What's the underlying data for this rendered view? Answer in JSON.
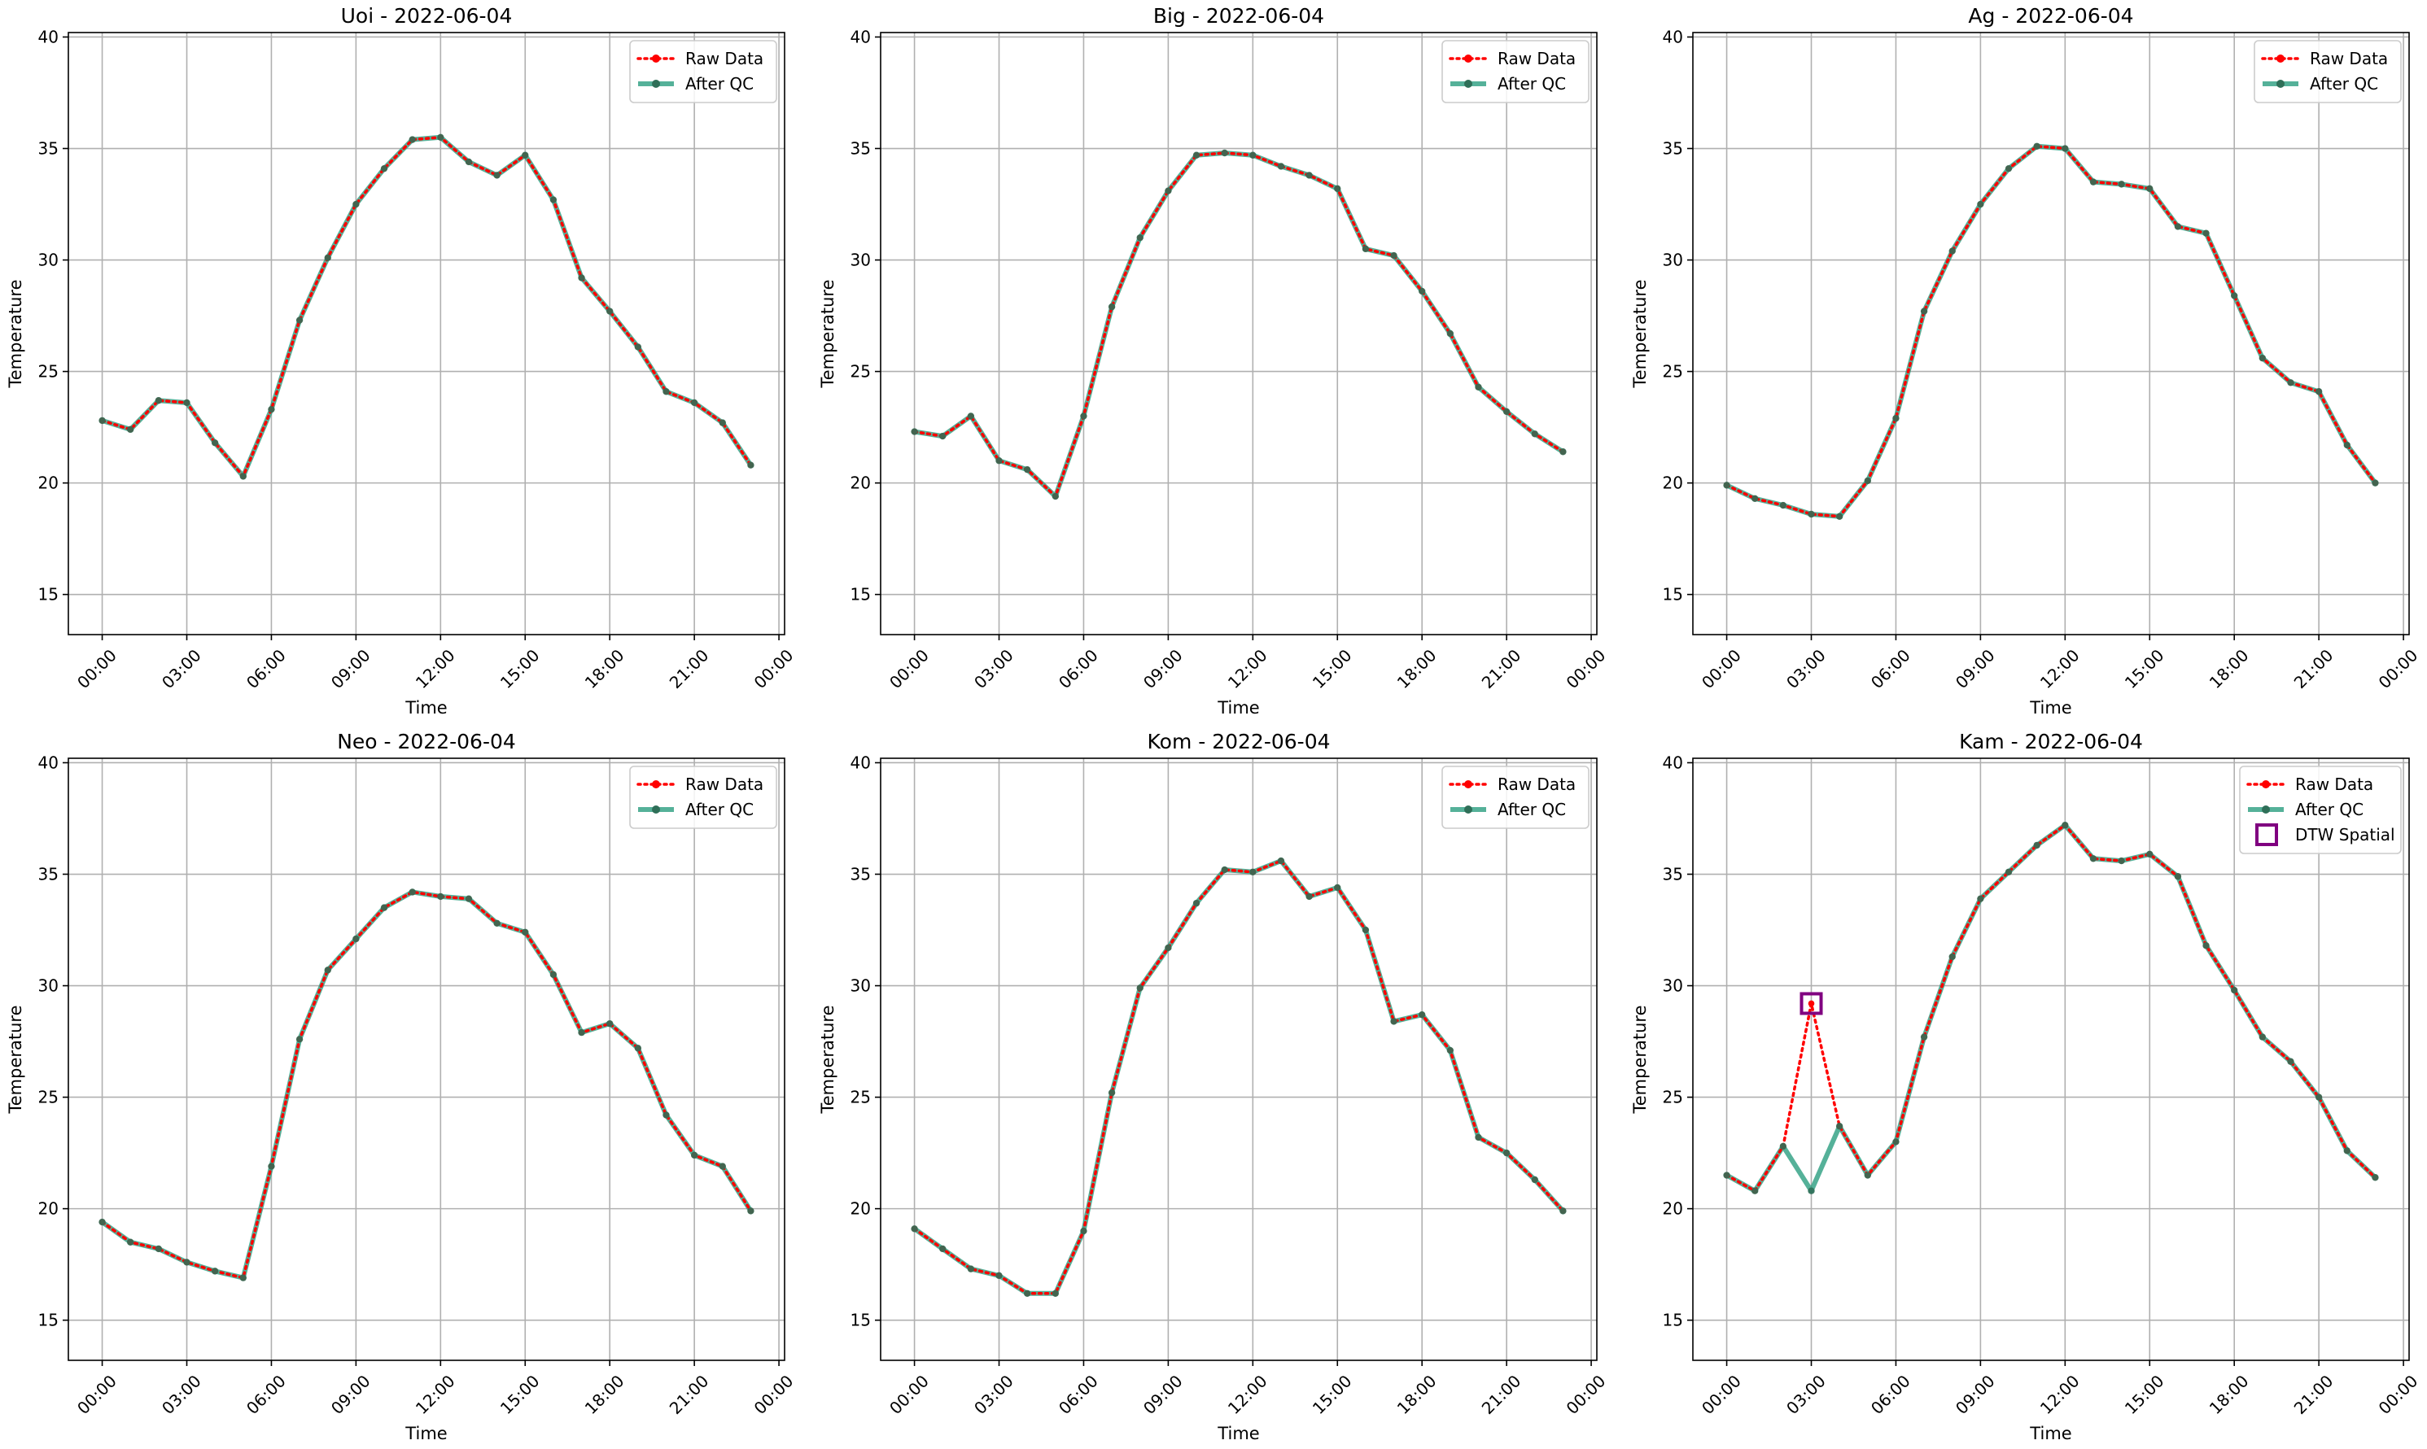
{
  "chart_data": [
    {
      "type": "line",
      "title": "Uoi - 2022-06-04",
      "xlabel": "Time",
      "ylabel": "Temperature",
      "x_ticks": [
        "00:00",
        "03:00",
        "06:00",
        "09:00",
        "12:00",
        "15:00",
        "18:00",
        "21:00",
        "00:00"
      ],
      "y_ticks": [
        15,
        20,
        25,
        30,
        35,
        40
      ],
      "ylim": [
        13.2,
        40.2
      ],
      "xlim_hours": [
        -1.2,
        24.2
      ],
      "grid": true,
      "legend_position": "top-right",
      "hours": [
        0,
        1,
        2,
        3,
        4,
        5,
        6,
        7,
        8,
        9,
        10,
        11,
        12,
        13,
        14,
        15,
        16,
        17,
        18,
        19,
        20,
        21,
        22,
        23
      ],
      "series": [
        {
          "name": "Raw Data",
          "color": "#ff0000",
          "style": "dotted",
          "values": [
            22.8,
            22.4,
            23.7,
            23.6,
            21.8,
            20.3,
            23.3,
            27.3,
            30.1,
            32.5,
            34.1,
            35.4,
            35.5,
            34.4,
            33.8,
            34.7,
            32.7,
            29.2,
            27.7,
            26.1,
            24.1,
            23.6,
            22.7,
            20.8
          ]
        },
        {
          "name": "After QC",
          "color": "#2a9d7f",
          "style": "solid",
          "values": [
            22.8,
            22.4,
            23.7,
            23.6,
            21.8,
            20.3,
            23.3,
            27.3,
            30.1,
            32.5,
            34.1,
            35.4,
            35.5,
            34.4,
            33.8,
            34.7,
            32.7,
            29.2,
            27.7,
            26.1,
            24.1,
            23.6,
            22.7,
            20.8
          ]
        }
      ],
      "flagged": []
    },
    {
      "type": "line",
      "title": "Big - 2022-06-04",
      "xlabel": "Time",
      "ylabel": "Temperature",
      "x_ticks": [
        "00:00",
        "03:00",
        "06:00",
        "09:00",
        "12:00",
        "15:00",
        "18:00",
        "21:00",
        "00:00"
      ],
      "y_ticks": [
        15,
        20,
        25,
        30,
        35,
        40
      ],
      "ylim": [
        13.2,
        40.2
      ],
      "xlim_hours": [
        -1.2,
        24.2
      ],
      "grid": true,
      "legend_position": "top-right",
      "hours": [
        0,
        1,
        2,
        3,
        4,
        5,
        6,
        7,
        8,
        9,
        10,
        11,
        12,
        13,
        14,
        15,
        16,
        17,
        18,
        19,
        20,
        21,
        22,
        23
      ],
      "series": [
        {
          "name": "Raw Data",
          "color": "#ff0000",
          "style": "dotted",
          "values": [
            22.3,
            22.1,
            23.0,
            21.0,
            20.6,
            19.4,
            23.0,
            27.9,
            31.0,
            33.1,
            34.7,
            34.8,
            34.7,
            34.2,
            33.8,
            33.2,
            30.5,
            30.2,
            28.6,
            26.7,
            24.3,
            23.2,
            22.2,
            21.4
          ]
        },
        {
          "name": "After QC",
          "color": "#2a9d7f",
          "style": "solid",
          "values": [
            22.3,
            22.1,
            23.0,
            21.0,
            20.6,
            19.4,
            23.0,
            27.9,
            31.0,
            33.1,
            34.7,
            34.8,
            34.7,
            34.2,
            33.8,
            33.2,
            30.5,
            30.2,
            28.6,
            26.7,
            24.3,
            23.2,
            22.2,
            21.4
          ]
        }
      ],
      "flagged": []
    },
    {
      "type": "line",
      "title": "Ag - 2022-06-04",
      "xlabel": "Time",
      "ylabel": "Temperature",
      "x_ticks": [
        "00:00",
        "03:00",
        "06:00",
        "09:00",
        "12:00",
        "15:00",
        "18:00",
        "21:00",
        "00:00"
      ],
      "y_ticks": [
        15,
        20,
        25,
        30,
        35,
        40
      ],
      "ylim": [
        13.2,
        40.2
      ],
      "xlim_hours": [
        -1.2,
        24.2
      ],
      "grid": true,
      "legend_position": "top-right",
      "hours": [
        0,
        1,
        2,
        3,
        4,
        5,
        6,
        7,
        8,
        9,
        10,
        11,
        12,
        13,
        14,
        15,
        16,
        17,
        18,
        19,
        20,
        21,
        22,
        23
      ],
      "series": [
        {
          "name": "Raw Data",
          "color": "#ff0000",
          "style": "dotted",
          "values": [
            19.9,
            19.3,
            19.0,
            18.6,
            18.5,
            20.1,
            22.9,
            27.7,
            30.4,
            32.5,
            34.1,
            35.1,
            35.0,
            33.5,
            33.4,
            33.2,
            31.5,
            31.2,
            28.4,
            25.6,
            24.5,
            24.1,
            21.7,
            20.0
          ]
        },
        {
          "name": "After QC",
          "color": "#2a9d7f",
          "style": "solid",
          "values": [
            19.9,
            19.3,
            19.0,
            18.6,
            18.5,
            20.1,
            22.9,
            27.7,
            30.4,
            32.5,
            34.1,
            35.1,
            35.0,
            33.5,
            33.4,
            33.2,
            31.5,
            31.2,
            28.4,
            25.6,
            24.5,
            24.1,
            21.7,
            20.0
          ]
        }
      ],
      "flagged": []
    },
    {
      "type": "line",
      "title": "Neo - 2022-06-04",
      "xlabel": "Time",
      "ylabel": "Temperature",
      "x_ticks": [
        "00:00",
        "03:00",
        "06:00",
        "09:00",
        "12:00",
        "15:00",
        "18:00",
        "21:00",
        "00:00"
      ],
      "y_ticks": [
        15,
        20,
        25,
        30,
        35,
        40
      ],
      "ylim": [
        13.2,
        40.2
      ],
      "xlim_hours": [
        -1.2,
        24.2
      ],
      "grid": true,
      "legend_position": "top-right",
      "hours": [
        0,
        1,
        2,
        3,
        4,
        5,
        6,
        7,
        8,
        9,
        10,
        11,
        12,
        13,
        14,
        15,
        16,
        17,
        18,
        19,
        20,
        21,
        22,
        23
      ],
      "series": [
        {
          "name": "Raw Data",
          "color": "#ff0000",
          "style": "dotted",
          "values": [
            19.4,
            18.5,
            18.2,
            17.6,
            17.2,
            16.9,
            21.9,
            27.6,
            30.7,
            32.1,
            33.5,
            34.2,
            34.0,
            33.9,
            32.8,
            32.4,
            30.5,
            27.9,
            28.3,
            27.2,
            24.2,
            22.4,
            21.9,
            19.9
          ]
        },
        {
          "name": "After QC",
          "color": "#2a9d7f",
          "style": "solid",
          "values": [
            19.4,
            18.5,
            18.2,
            17.6,
            17.2,
            16.9,
            21.9,
            27.6,
            30.7,
            32.1,
            33.5,
            34.2,
            34.0,
            33.9,
            32.8,
            32.4,
            30.5,
            27.9,
            28.3,
            27.2,
            24.2,
            22.4,
            21.9,
            19.9
          ]
        }
      ],
      "flagged": []
    },
    {
      "type": "line",
      "title": "Kom - 2022-06-04",
      "xlabel": "Time",
      "ylabel": "Temperature",
      "x_ticks": [
        "00:00",
        "03:00",
        "06:00",
        "09:00",
        "12:00",
        "15:00",
        "18:00",
        "21:00",
        "00:00"
      ],
      "y_ticks": [
        15,
        20,
        25,
        30,
        35,
        40
      ],
      "ylim": [
        13.2,
        40.2
      ],
      "xlim_hours": [
        -1.2,
        24.2
      ],
      "grid": true,
      "legend_position": "top-right",
      "hours": [
        0,
        1,
        2,
        3,
        4,
        5,
        6,
        7,
        8,
        9,
        10,
        11,
        12,
        13,
        14,
        15,
        16,
        17,
        18,
        19,
        20,
        21,
        22,
        23
      ],
      "series": [
        {
          "name": "Raw Data",
          "color": "#ff0000",
          "style": "dotted",
          "values": [
            19.1,
            18.2,
            17.3,
            17.0,
            16.2,
            16.2,
            19.0,
            25.2,
            29.9,
            31.7,
            33.7,
            35.2,
            35.1,
            35.6,
            34.0,
            34.4,
            32.5,
            28.4,
            28.7,
            27.1,
            23.2,
            22.5,
            21.3,
            19.9
          ]
        },
        {
          "name": "After QC",
          "color": "#2a9d7f",
          "style": "solid",
          "values": [
            19.1,
            18.2,
            17.3,
            17.0,
            16.2,
            16.2,
            19.0,
            25.2,
            29.9,
            31.7,
            33.7,
            35.2,
            35.1,
            35.6,
            34.0,
            34.4,
            32.5,
            28.4,
            28.7,
            27.1,
            23.2,
            22.5,
            21.3,
            19.9
          ]
        }
      ],
      "flagged": []
    },
    {
      "type": "line",
      "title": "Kam - 2022-06-04",
      "xlabel": "Time",
      "ylabel": "Temperature",
      "x_ticks": [
        "00:00",
        "03:00",
        "06:00",
        "09:00",
        "12:00",
        "15:00",
        "18:00",
        "21:00",
        "00:00"
      ],
      "y_ticks": [
        15,
        20,
        25,
        30,
        35,
        40
      ],
      "ylim": [
        13.2,
        40.2
      ],
      "xlim_hours": [
        -1.2,
        24.2
      ],
      "grid": true,
      "legend_position": "top-right",
      "hours": [
        0,
        1,
        2,
        3,
        4,
        5,
        6,
        7,
        8,
        9,
        10,
        11,
        12,
        13,
        14,
        15,
        16,
        17,
        18,
        19,
        20,
        21,
        22,
        23
      ],
      "series": [
        {
          "name": "Raw Data",
          "color": "#ff0000",
          "style": "dotted",
          "values": [
            21.5,
            20.8,
            22.8,
            29.2,
            23.7,
            21.5,
            23.0,
            27.7,
            31.3,
            33.9,
            35.1,
            36.3,
            37.2,
            35.7,
            35.6,
            35.9,
            34.9,
            31.8,
            29.8,
            27.7,
            26.6,
            25.0,
            22.6,
            21.4
          ]
        },
        {
          "name": "After QC",
          "color": "#2a9d7f",
          "style": "solid",
          "values": [
            21.5,
            20.8,
            22.8,
            20.8,
            23.7,
            21.5,
            23.0,
            27.7,
            31.3,
            33.9,
            35.1,
            36.3,
            37.2,
            35.7,
            35.6,
            35.9,
            34.9,
            31.8,
            29.8,
            27.7,
            26.6,
            25.0,
            22.6,
            21.4
          ]
        }
      ],
      "flagged": [
        {
          "name": "DTW Spatial",
          "color": "#800080",
          "hour": 3,
          "value": 29.2
        }
      ]
    }
  ]
}
